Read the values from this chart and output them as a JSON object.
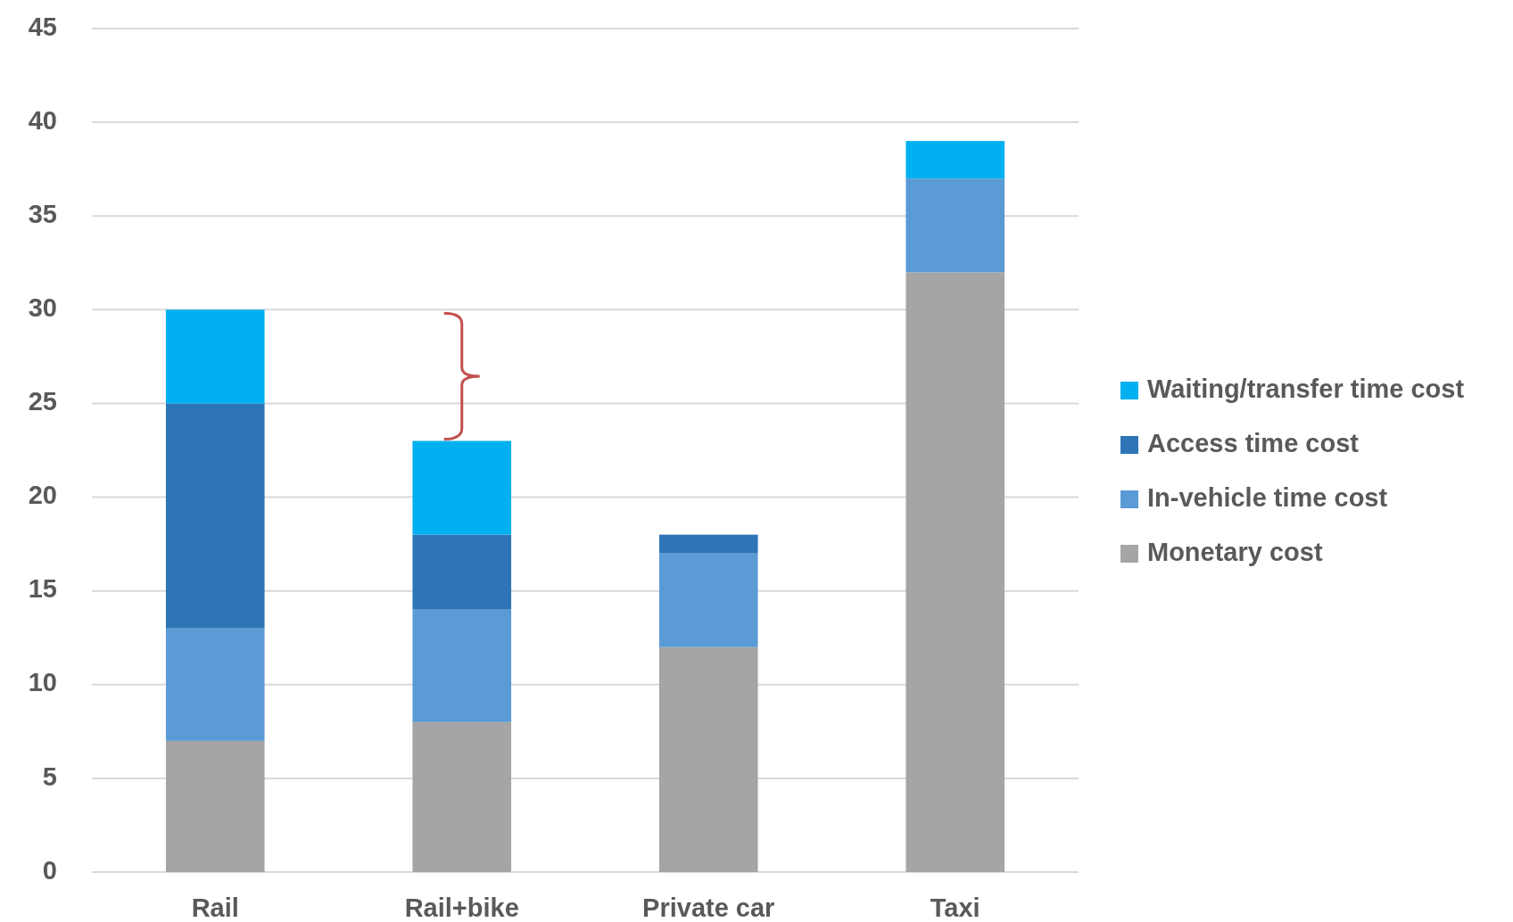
{
  "chart_data": {
    "type": "bar",
    "stacked": true,
    "categories": [
      "Rail",
      "Rail+bike",
      "Private car",
      "Taxi"
    ],
    "series": [
      {
        "name": "Monetary cost",
        "color": "#a5a5a5",
        "values": [
          7,
          8,
          12,
          32
        ]
      },
      {
        "name": "In-vehicle time cost",
        "color": "#5b9bd5",
        "values": [
          6,
          6,
          5,
          5
        ]
      },
      {
        "name": "Access time cost",
        "color": "#2e75b6",
        "values": [
          12,
          4,
          1,
          null
        ]
      },
      {
        "name": "Waiting/transfer time cost",
        "color": "#00b0f0",
        "values": [
          5,
          5,
          null,
          2
        ]
      }
    ],
    "ylim": [
      0,
      45
    ],
    "yticks": [
      0,
      5,
      10,
      15,
      20,
      25,
      30,
      35,
      40,
      45
    ],
    "grid": "y",
    "legend": "right"
  }
}
